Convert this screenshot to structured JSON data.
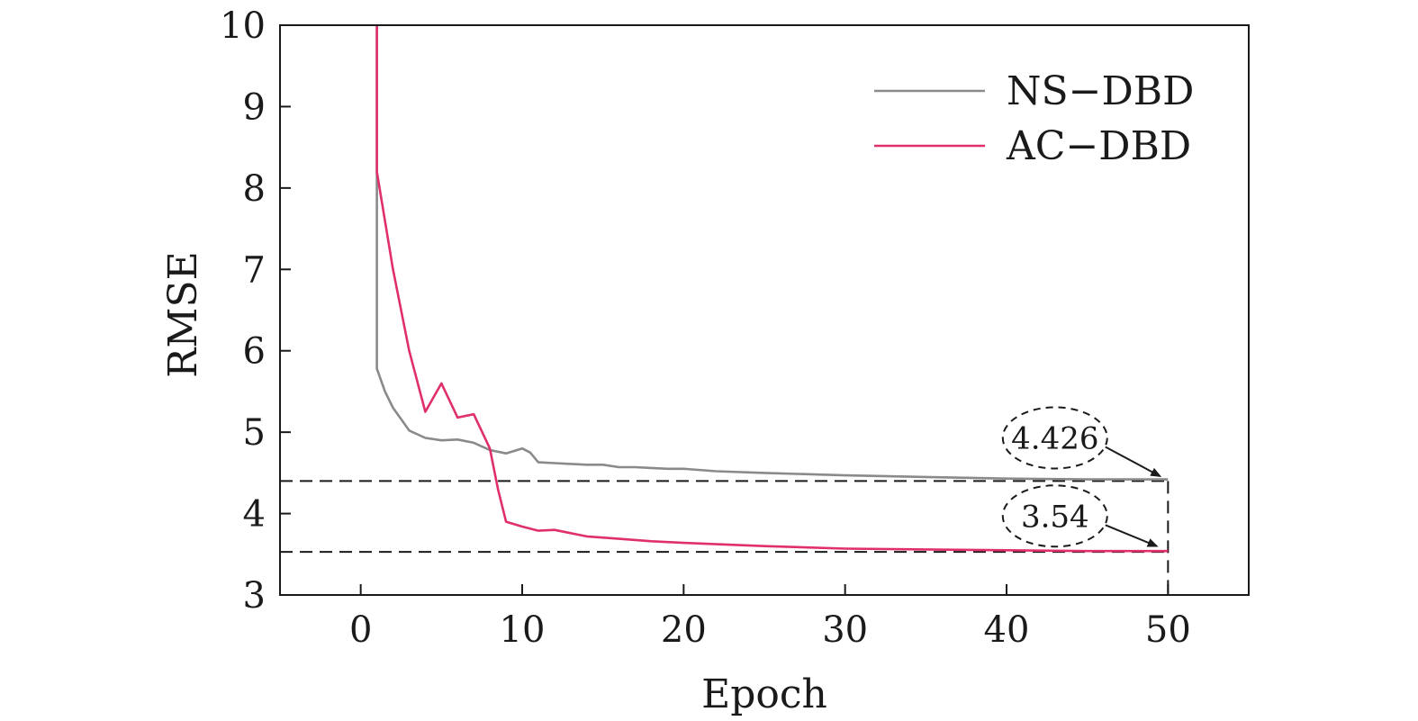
{
  "chart_data": {
    "type": "line",
    "xlabel": "Epoch",
    "ylabel": "RMSE",
    "xlim": [
      -5,
      55
    ],
    "ylim": [
      3,
      10
    ],
    "xticks": [
      0,
      10,
      20,
      30,
      40,
      50
    ],
    "yticks": [
      3,
      4,
      5,
      6,
      7,
      8,
      9,
      10
    ],
    "grid": false,
    "legend_position": "top-right",
    "series": [
      {
        "name": "NS−DBD",
        "color": "#8a8a8a",
        "x": [
          1,
          1,
          1.5,
          2,
          3,
          4,
          5,
          6,
          7,
          8,
          9,
          10,
          10.5,
          11,
          12,
          13,
          14,
          15,
          16,
          17,
          18,
          19,
          20,
          22,
          25,
          30,
          35,
          40,
          45,
          50
        ],
        "y": [
          10,
          5.78,
          5.5,
          5.3,
          5.02,
          4.93,
          4.9,
          4.91,
          4.87,
          4.78,
          4.74,
          4.8,
          4.75,
          4.63,
          4.62,
          4.61,
          4.6,
          4.6,
          4.57,
          4.57,
          4.56,
          4.55,
          4.55,
          4.52,
          4.5,
          4.47,
          4.45,
          4.43,
          4.42,
          4.42
        ]
      },
      {
        "name": "AC−DBD",
        "color": "#e0306a",
        "x": [
          1,
          1,
          2,
          3,
          4,
          5,
          6,
          7,
          8,
          8.5,
          9,
          10,
          11,
          12,
          14,
          16,
          18,
          20,
          25,
          30,
          35,
          40,
          45,
          50
        ],
        "y": [
          10,
          8.2,
          7.0,
          6.0,
          5.25,
          5.6,
          5.18,
          5.22,
          4.8,
          4.3,
          3.9,
          3.84,
          3.79,
          3.8,
          3.72,
          3.69,
          3.66,
          3.64,
          3.6,
          3.57,
          3.56,
          3.55,
          3.54,
          3.54
        ]
      }
    ],
    "reference_lines": [
      {
        "y": 4.4,
        "style": "dashed"
      },
      {
        "y": 3.53,
        "style": "dashed"
      }
    ],
    "vertical_reference": {
      "x": 50,
      "style": "dashed"
    },
    "annotations": [
      {
        "text": "4.426",
        "x": 43,
        "y": 4.93,
        "arrow_to": [
          49.5,
          4.46
        ]
      },
      {
        "text": "3.54",
        "x": 43,
        "y": 3.97,
        "arrow_to": [
          49.3,
          3.6
        ]
      }
    ]
  }
}
